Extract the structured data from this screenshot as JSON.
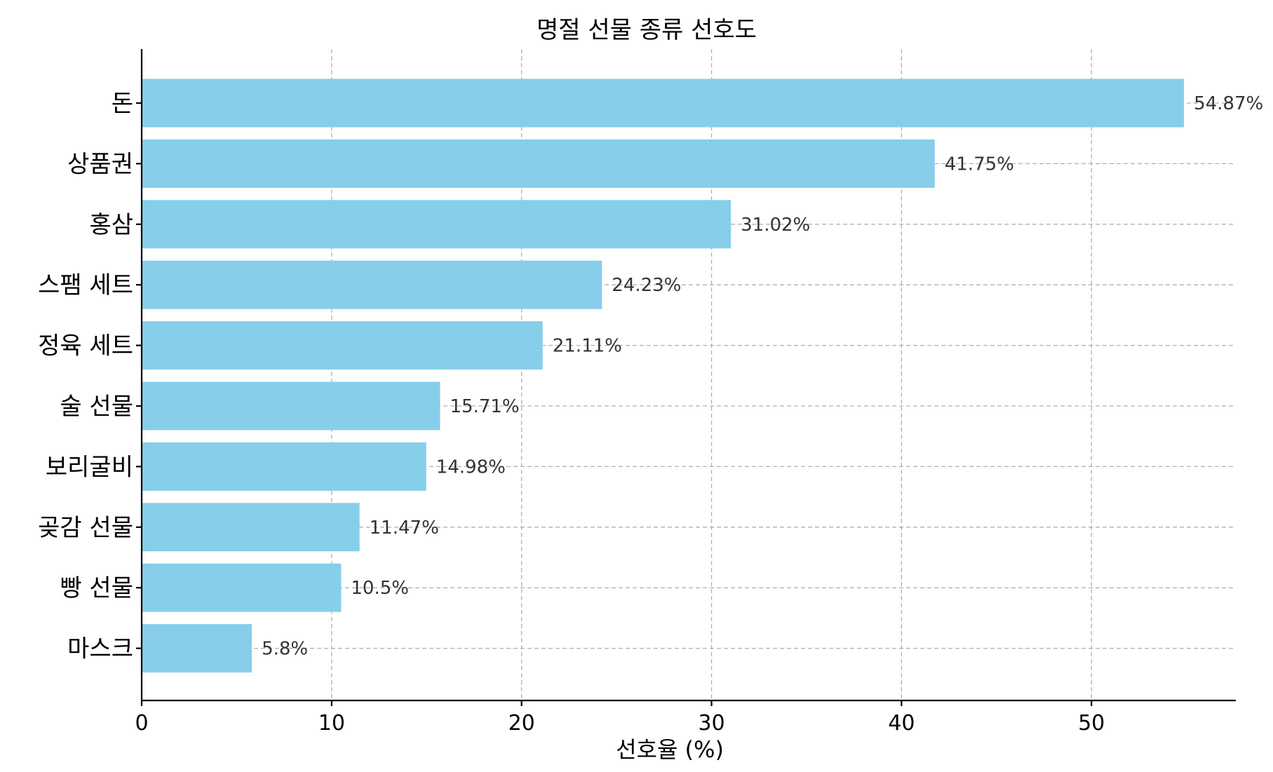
{
  "chart_data": {
    "type": "bar",
    "orientation": "horizontal",
    "title": "명절 선물 종류 선호도",
    "xlabel": "선호율 (%)",
    "ylabel": "",
    "categories": [
      "돈",
      "상품권",
      "홍삼",
      "스팸 세트",
      "정육 세트",
      "술 선물",
      "보리굴비",
      "곶감 선물",
      "빵 선물",
      "마스크"
    ],
    "values": [
      54.87,
      41.75,
      31.02,
      24.23,
      21.11,
      15.71,
      14.98,
      11.47,
      10.5,
      5.8
    ],
    "value_labels": [
      "54.87%",
      "41.75%",
      "31.02%",
      "24.23%",
      "21.11%",
      "15.71%",
      "14.98%",
      "11.47%",
      "10.5%",
      "5.8%"
    ],
    "xlim": [
      0,
      57.6
    ],
    "xticks": [
      0,
      10,
      20,
      30,
      40,
      50
    ],
    "grid": true,
    "bar_color": "#87ceeb"
  }
}
